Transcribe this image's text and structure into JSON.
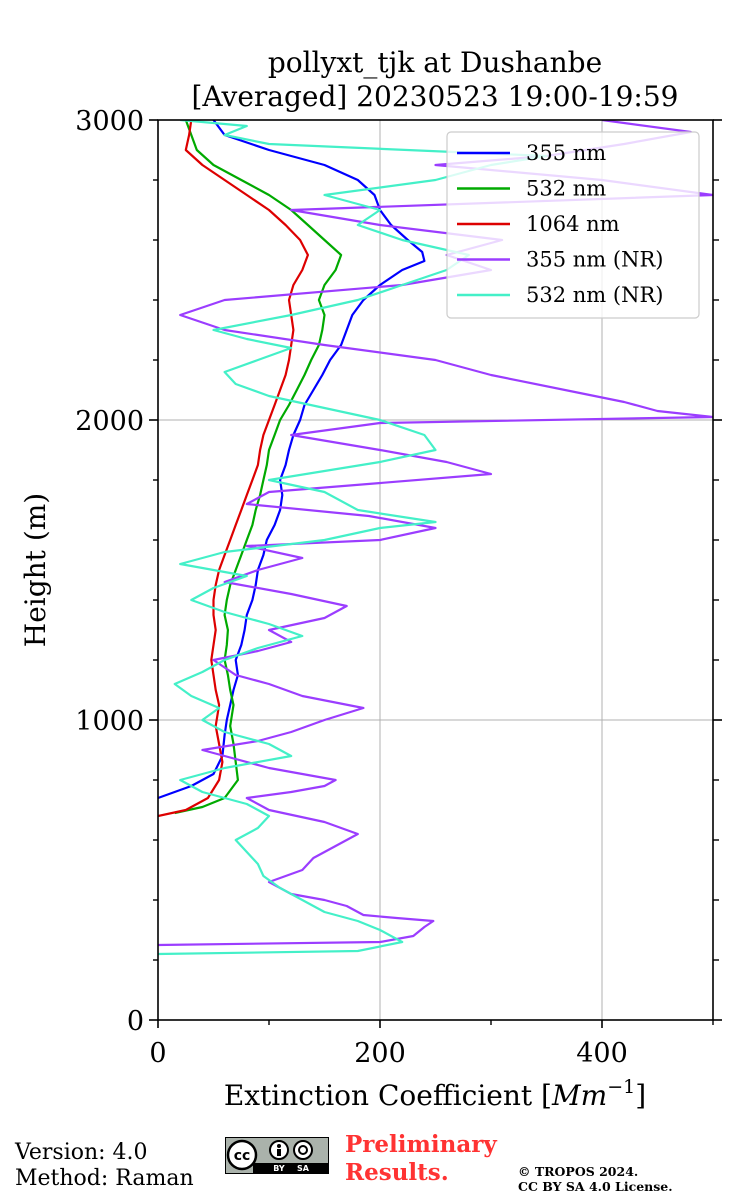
{
  "chart_data": {
    "type": "line",
    "title_line1": "pollyxt_tjk at Dushanbe",
    "title_line2": "[Averaged] 20230523 19:00-19:59",
    "xlabel": "Extinction Coefficient [",
    "xlabel_unit": "Mm",
    "xlabel_exp": "−1",
    "xlabel_end": "]",
    "ylabel": "Height (m)",
    "xlim": [
      0,
      500
    ],
    "ylim": [
      0,
      3000
    ],
    "x_ticks": [
      0,
      200,
      400
    ],
    "y_ticks": [
      0,
      1000,
      2000,
      3000
    ],
    "x_tick_labels": [
      "0",
      "200",
      "400"
    ],
    "y_tick_labels": [
      "0",
      "1000",
      "2000",
      "3000"
    ],
    "grid": true,
    "legend_position": "top-right",
    "series": [
      {
        "name": "355 nm",
        "color": "#0000ff",
        "points": [
          [
            0,
            740
          ],
          [
            30,
            780
          ],
          [
            50,
            820
          ],
          [
            58,
            880
          ],
          [
            60,
            950
          ],
          [
            62,
            1000
          ],
          [
            65,
            1050
          ],
          [
            68,
            1100
          ],
          [
            72,
            1150
          ],
          [
            70,
            1200
          ],
          [
            75,
            1250
          ],
          [
            78,
            1300
          ],
          [
            80,
            1350
          ],
          [
            85,
            1400
          ],
          [
            88,
            1450
          ],
          [
            90,
            1500
          ],
          [
            95,
            1550
          ],
          [
            98,
            1600
          ],
          [
            105,
            1650
          ],
          [
            110,
            1700
          ],
          [
            112,
            1750
          ],
          [
            110,
            1800
          ],
          [
            115,
            1850
          ],
          [
            118,
            1900
          ],
          [
            122,
            1950
          ],
          [
            128,
            2000
          ],
          [
            132,
            2050
          ],
          [
            140,
            2100
          ],
          [
            148,
            2150
          ],
          [
            155,
            2200
          ],
          [
            165,
            2250
          ],
          [
            170,
            2300
          ],
          [
            175,
            2350
          ],
          [
            185,
            2400
          ],
          [
            200,
            2450
          ],
          [
            220,
            2500
          ],
          [
            240,
            2530
          ],
          [
            238,
            2560
          ],
          [
            225,
            2600
          ],
          [
            210,
            2650
          ],
          [
            200,
            2700
          ],
          [
            195,
            2750
          ],
          [
            180,
            2800
          ],
          [
            150,
            2850
          ],
          [
            100,
            2900
          ],
          [
            60,
            2950
          ],
          [
            50,
            3000
          ]
        ]
      },
      {
        "name": "532 nm",
        "color": "#00aa00",
        "points": [
          [
            15,
            690
          ],
          [
            40,
            710
          ],
          [
            60,
            740
          ],
          [
            72,
            800
          ],
          [
            70,
            860
          ],
          [
            68,
            920
          ],
          [
            65,
            980
          ],
          [
            68,
            1050
          ],
          [
            65,
            1100
          ],
          [
            63,
            1150
          ],
          [
            60,
            1200
          ],
          [
            62,
            1250
          ],
          [
            63,
            1300
          ],
          [
            60,
            1350
          ],
          [
            62,
            1400
          ],
          [
            65,
            1450
          ],
          [
            70,
            1500
          ],
          [
            75,
            1550
          ],
          [
            80,
            1600
          ],
          [
            85,
            1650
          ],
          [
            88,
            1700
          ],
          [
            92,
            1750
          ],
          [
            95,
            1800
          ],
          [
            98,
            1850
          ],
          [
            100,
            1900
          ],
          [
            105,
            1950
          ],
          [
            110,
            2000
          ],
          [
            118,
            2050
          ],
          [
            125,
            2100
          ],
          [
            132,
            2150
          ],
          [
            138,
            2200
          ],
          [
            145,
            2250
          ],
          [
            148,
            2300
          ],
          [
            150,
            2350
          ],
          [
            145,
            2400
          ],
          [
            150,
            2450
          ],
          [
            160,
            2500
          ],
          [
            165,
            2550
          ],
          [
            150,
            2600
          ],
          [
            135,
            2650
          ],
          [
            120,
            2700
          ],
          [
            100,
            2750
          ],
          [
            75,
            2800
          ],
          [
            50,
            2850
          ],
          [
            35,
            2900
          ],
          [
            30,
            2950
          ],
          [
            25,
            3000
          ]
        ]
      },
      {
        "name": "1064 nm",
        "color": "#dd0000",
        "points": [
          [
            0,
            680
          ],
          [
            25,
            700
          ],
          [
            45,
            740
          ],
          [
            55,
            800
          ],
          [
            58,
            860
          ],
          [
            55,
            920
          ],
          [
            52,
            980
          ],
          [
            55,
            1050
          ],
          [
            52,
            1100
          ],
          [
            50,
            1150
          ],
          [
            48,
            1200
          ],
          [
            50,
            1250
          ],
          [
            52,
            1300
          ],
          [
            50,
            1350
          ],
          [
            50,
            1400
          ],
          [
            52,
            1450
          ],
          [
            55,
            1500
          ],
          [
            60,
            1550
          ],
          [
            65,
            1600
          ],
          [
            70,
            1650
          ],
          [
            75,
            1700
          ],
          [
            80,
            1750
          ],
          [
            85,
            1800
          ],
          [
            90,
            1850
          ],
          [
            92,
            1900
          ],
          [
            95,
            1950
          ],
          [
            100,
            2000
          ],
          [
            105,
            2050
          ],
          [
            110,
            2100
          ],
          [
            115,
            2150
          ],
          [
            118,
            2200
          ],
          [
            120,
            2250
          ],
          [
            122,
            2300
          ],
          [
            120,
            2350
          ],
          [
            118,
            2400
          ],
          [
            122,
            2450
          ],
          [
            130,
            2500
          ],
          [
            135,
            2550
          ],
          [
            128,
            2600
          ],
          [
            115,
            2650
          ],
          [
            100,
            2700
          ],
          [
            80,
            2750
          ],
          [
            60,
            2800
          ],
          [
            40,
            2850
          ],
          [
            25,
            2900
          ],
          [
            28,
            2950
          ],
          [
            30,
            3000
          ]
        ]
      },
      {
        "name": "355 nm (NR)",
        "color": "#9b3dff",
        "points": [
          [
            0,
            250
          ],
          [
            200,
            260
          ],
          [
            230,
            280
          ],
          [
            240,
            310
          ],
          [
            248,
            330
          ],
          [
            215,
            340
          ],
          [
            185,
            350
          ],
          [
            170,
            380
          ],
          [
            150,
            400
          ],
          [
            120,
            420
          ],
          [
            100,
            460
          ],
          [
            130,
            500
          ],
          [
            140,
            540
          ],
          [
            160,
            580
          ],
          [
            180,
            620
          ],
          [
            150,
            660
          ],
          [
            100,
            700
          ],
          [
            80,
            740
          ],
          [
            120,
            760
          ],
          [
            150,
            780
          ],
          [
            160,
            800
          ],
          [
            100,
            840
          ],
          [
            60,
            880
          ],
          [
            40,
            900
          ],
          [
            90,
            930
          ],
          [
            120,
            960
          ],
          [
            150,
            1000
          ],
          [
            185,
            1040
          ],
          [
            130,
            1080
          ],
          [
            100,
            1120
          ],
          [
            70,
            1150
          ],
          [
            50,
            1200
          ],
          [
            90,
            1230
          ],
          [
            120,
            1260
          ],
          [
            100,
            1300
          ],
          [
            150,
            1340
          ],
          [
            170,
            1380
          ],
          [
            120,
            1420
          ],
          [
            60,
            1460
          ],
          [
            90,
            1500
          ],
          [
            130,
            1540
          ],
          [
            80,
            1580
          ],
          [
            200,
            1600
          ],
          [
            250,
            1640
          ],
          [
            190,
            1680
          ],
          [
            80,
            1720
          ],
          [
            100,
            1760
          ],
          [
            300,
            1820
          ],
          [
            260,
            1860
          ],
          [
            200,
            1900
          ],
          [
            120,
            1950
          ],
          [
            200,
            1990
          ],
          [
            500,
            2010
          ],
          [
            450,
            2030
          ],
          [
            420,
            2060
          ],
          [
            380,
            2090
          ],
          [
            300,
            2150
          ],
          [
            250,
            2200
          ],
          [
            150,
            2250
          ],
          [
            60,
            2300
          ],
          [
            20,
            2350
          ],
          [
            60,
            2400
          ],
          [
            220,
            2450
          ],
          [
            300,
            2500
          ],
          [
            260,
            2550
          ],
          [
            310,
            2600
          ],
          [
            200,
            2650
          ],
          [
            120,
            2700
          ],
          [
            500,
            2750
          ],
          [
            400,
            2800
          ],
          [
            250,
            2850
          ],
          [
            350,
            2880
          ],
          [
            420,
            2920
          ],
          [
            480,
            2960
          ],
          [
            400,
            3000
          ]
        ]
      },
      {
        "name": "532 nm (NR)",
        "color": "#44f0c8",
        "points": [
          [
            0,
            220
          ],
          [
            180,
            230
          ],
          [
            220,
            260
          ],
          [
            200,
            300
          ],
          [
            180,
            330
          ],
          [
            150,
            360
          ],
          [
            130,
            400
          ],
          [
            110,
            440
          ],
          [
            95,
            480
          ],
          [
            90,
            520
          ],
          [
            80,
            560
          ],
          [
            70,
            600
          ],
          [
            90,
            640
          ],
          [
            100,
            680
          ],
          [
            80,
            720
          ],
          [
            40,
            760
          ],
          [
            20,
            800
          ],
          [
            60,
            840
          ],
          [
            120,
            880
          ],
          [
            100,
            920
          ],
          [
            60,
            960
          ],
          [
            40,
            1000
          ],
          [
            55,
            1040
          ],
          [
            30,
            1080
          ],
          [
            15,
            1120
          ],
          [
            40,
            1160
          ],
          [
            60,
            1200
          ],
          [
            90,
            1240
          ],
          [
            130,
            1280
          ],
          [
            100,
            1320
          ],
          [
            60,
            1360
          ],
          [
            30,
            1400
          ],
          [
            50,
            1440
          ],
          [
            80,
            1480
          ],
          [
            20,
            1520
          ],
          [
            60,
            1560
          ],
          [
            150,
            1600
          ],
          [
            200,
            1640
          ],
          [
            250,
            1660
          ],
          [
            180,
            1700
          ],
          [
            150,
            1760
          ],
          [
            100,
            1800
          ],
          [
            200,
            1860
          ],
          [
            250,
            1900
          ],
          [
            240,
            1950
          ],
          [
            200,
            2000
          ],
          [
            150,
            2040
          ],
          [
            100,
            2080
          ],
          [
            70,
            2120
          ],
          [
            60,
            2160
          ],
          [
            90,
            2200
          ],
          [
            120,
            2240
          ],
          [
            80,
            2270
          ],
          [
            50,
            2300
          ],
          [
            120,
            2350
          ],
          [
            180,
            2400
          ],
          [
            220,
            2450
          ],
          [
            260,
            2500
          ],
          [
            280,
            2550
          ],
          [
            220,
            2600
          ],
          [
            180,
            2650
          ],
          [
            200,
            2700
          ],
          [
            150,
            2750
          ],
          [
            250,
            2800
          ],
          [
            300,
            2850
          ],
          [
            350,
            2880
          ],
          [
            100,
            2920
          ],
          [
            60,
            2950
          ],
          [
            80,
            2980
          ],
          [
            20,
            3000
          ]
        ]
      }
    ]
  },
  "footer": {
    "version": "Version: 4.0",
    "method": "Method: Raman",
    "preliminary_line1": "Preliminary",
    "preliminary_line2": "Results.",
    "copyright_line1": "© TROPOS 2024.",
    "copyright_line2": "CC BY SA 4.0 License.",
    "cc_label": "cc",
    "cc_by": "BY",
    "cc_sa": "SA"
  }
}
